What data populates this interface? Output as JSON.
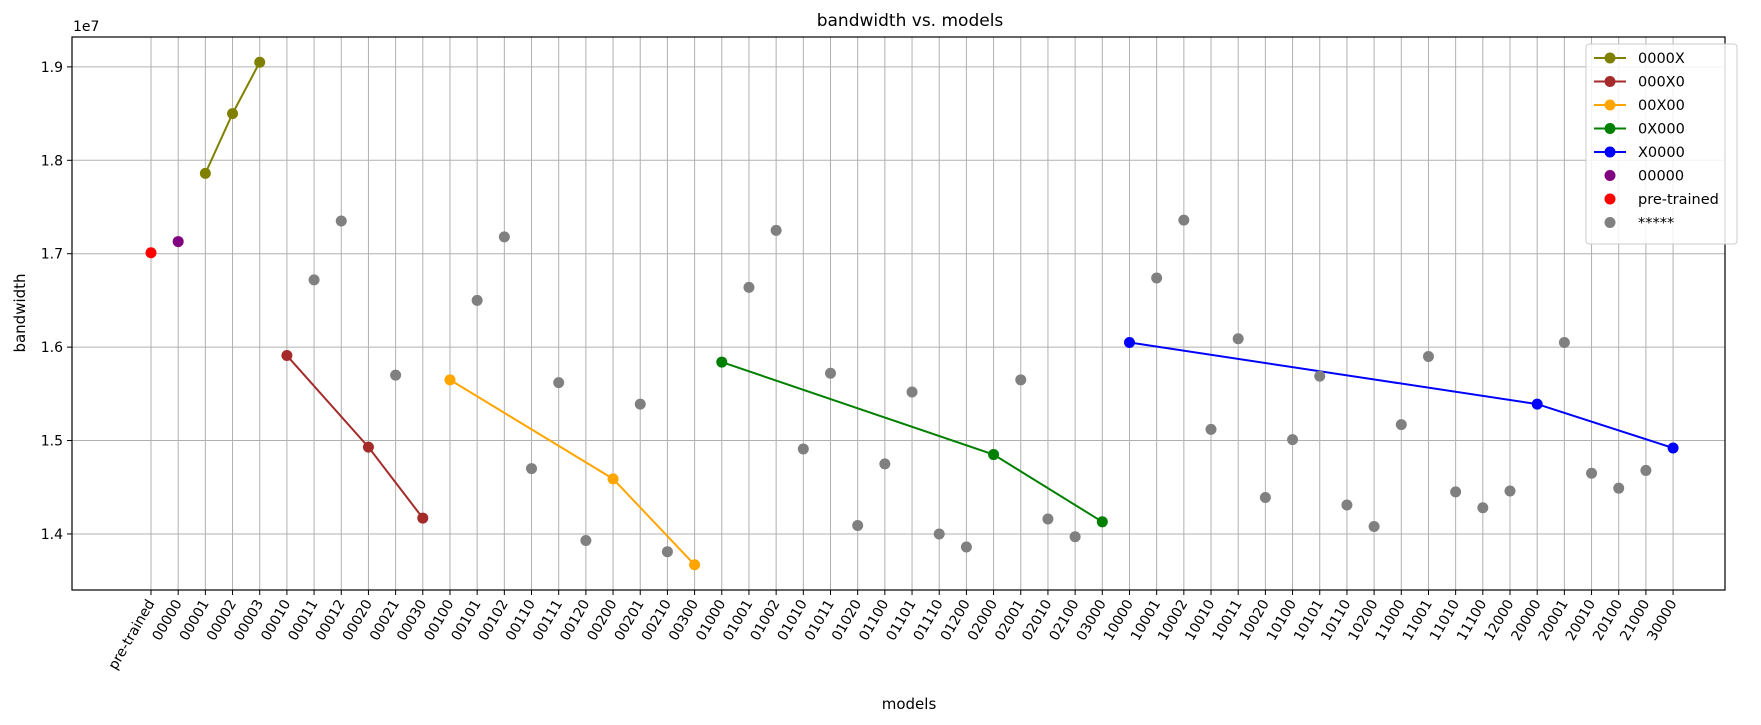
{
  "chart_data": {
    "type": "line",
    "title": "bandwidth vs. models",
    "xlabel": "models",
    "ylabel": "bandwidth",
    "y_multiplier": "1e7",
    "ylim": [
      13400000,
      19320000
    ],
    "yticks": [
      14000000,
      15000000,
      16000000,
      17000000,
      18000000,
      19000000
    ],
    "ytick_labels": [
      "1.4",
      "1.5",
      "1.6",
      "1.7",
      "1.8",
      "1.9"
    ],
    "grid": true,
    "legend_position": "top-right",
    "categories": [
      "pre-trained",
      "00000",
      "00001",
      "00002",
      "00003",
      "00010",
      "00011",
      "00012",
      "00020",
      "00021",
      "00030",
      "00100",
      "00101",
      "00102",
      "00110",
      "00111",
      "00120",
      "00200",
      "00201",
      "00210",
      "00300",
      "01000",
      "01001",
      "01002",
      "01010",
      "01011",
      "01020",
      "01100",
      "01101",
      "01110",
      "01200",
      "02000",
      "02001",
      "02010",
      "02100",
      "03000",
      "10000",
      "10001",
      "10002",
      "10010",
      "10011",
      "10020",
      "10100",
      "10101",
      "10110",
      "10200",
      "11000",
      "11001",
      "11010",
      "11100",
      "12000",
      "20000",
      "20001",
      "20010",
      "20100",
      "21000",
      "30000"
    ],
    "series": [
      {
        "name": "0000X",
        "kind": "line",
        "color": "#808000",
        "x": [
          "00001",
          "00002",
          "00003"
        ],
        "values": [
          17860000,
          18500000,
          19050000
        ]
      },
      {
        "name": "000X0",
        "kind": "line",
        "color": "#a52a2a",
        "x": [
          "00010",
          "00020",
          "00030"
        ],
        "values": [
          15910000,
          14930000,
          14170000
        ]
      },
      {
        "name": "00X00",
        "kind": "line",
        "color": "#ffa500",
        "x": [
          "00100",
          "00200",
          "00300"
        ],
        "values": [
          15650000,
          14590000,
          13670000
        ]
      },
      {
        "name": "0X000",
        "kind": "line",
        "color": "#008000",
        "x": [
          "01000",
          "02000",
          "03000"
        ],
        "values": [
          15840000,
          14850000,
          14130000
        ]
      },
      {
        "name": "X0000",
        "kind": "line",
        "color": "#0000ff",
        "x": [
          "10000",
          "20000",
          "30000"
        ],
        "values": [
          16050000,
          15390000,
          14920000
        ]
      },
      {
        "name": "00000",
        "kind": "scatter",
        "color": "#800080",
        "x": [
          "00000"
        ],
        "values": [
          17130000
        ]
      },
      {
        "name": "pre-trained",
        "kind": "scatter",
        "color": "#ff0000",
        "x": [
          "pre-trained"
        ],
        "values": [
          17010000
        ]
      },
      {
        "name": "*****",
        "kind": "scatter",
        "color": "#808080",
        "x": [
          "00011",
          "00012",
          "00021",
          "00101",
          "00102",
          "00110",
          "00111",
          "00120",
          "00201",
          "00210",
          "01001",
          "01002",
          "01010",
          "01011",
          "01020",
          "01100",
          "01101",
          "01110",
          "01200",
          "02001",
          "02010",
          "02100",
          "10001",
          "10002",
          "10010",
          "10011",
          "10020",
          "10100",
          "10101",
          "10110",
          "10200",
          "11000",
          "11001",
          "11010",
          "11100",
          "12000",
          "20001",
          "20010",
          "20100",
          "21000"
        ],
        "values": [
          16720000,
          17350000,
          15700000,
          16500000,
          17180000,
          14700000,
          15620000,
          13930000,
          15390000,
          13810000,
          16640000,
          17250000,
          14910000,
          15720000,
          14090000,
          14750000,
          15520000,
          14000000,
          13860000,
          15650000,
          14160000,
          13970000,
          16740000,
          17360000,
          15120000,
          16090000,
          14390000,
          15010000,
          15690000,
          14310000,
          14080000,
          15170000,
          15900000,
          14450000,
          14280000,
          14460000,
          16050000,
          14650000,
          14490000,
          14680000
        ]
      }
    ]
  }
}
